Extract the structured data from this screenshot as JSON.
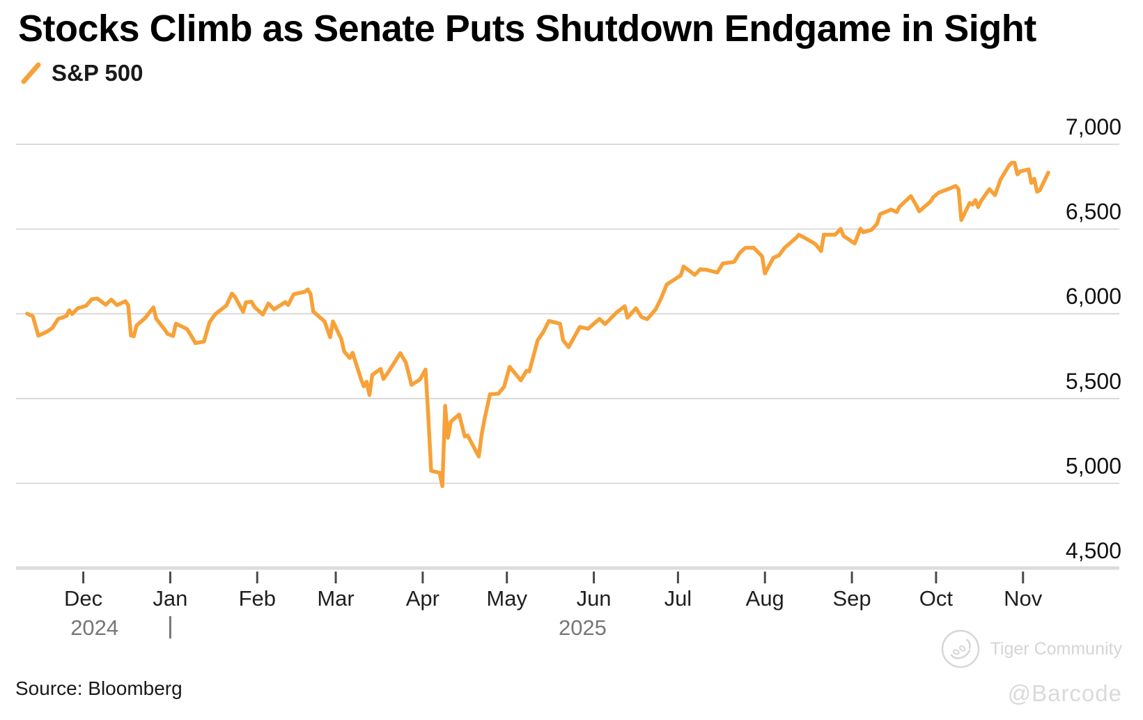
{
  "header": {
    "title": "Stocks Climb as Senate Puts Shutdown Endgame in Sight",
    "legend": {
      "label": "S&P 500",
      "mark": "orange-slash",
      "color": "#F7A138"
    }
  },
  "footer": {
    "source": "Source: Bloomberg",
    "watermark": {
      "logo": "tiger-paw-circle",
      "community": "Tiger Community",
      "handle": "@Barcode"
    }
  },
  "colors": {
    "line": "#F7A138",
    "grid": "#d7d7d7",
    "axis": "#dcdcdc",
    "tick": "#4a4a4a",
    "axis_label": "#111111",
    "year_label": "#767676",
    "watermark": "#d6d6d6"
  },
  "chart_data": {
    "type": "line",
    "title": "Stocks Climb as Senate Puts Shutdown Endgame in Sight",
    "xlabel": "",
    "ylabel": "",
    "grid": true,
    "legend_position": "top-left",
    "x_range": [
      "2024-11-10",
      "2025-11-10"
    ],
    "ylim": [
      4500,
      7000
    ],
    "y_ticks": [
      4500,
      5000,
      5500,
      6000,
      6500,
      7000
    ],
    "x_ticks": [
      {
        "label": "Dec",
        "date": "2024-12-01"
      },
      {
        "label": "Jan",
        "date": "2025-01-01"
      },
      {
        "label": "Feb",
        "date": "2025-02-01"
      },
      {
        "label": "Mar",
        "date": "2025-03-01"
      },
      {
        "label": "Apr",
        "date": "2025-04-01"
      },
      {
        "label": "May",
        "date": "2025-05-01"
      },
      {
        "label": "Jun",
        "date": "2025-06-01"
      },
      {
        "label": "Jul",
        "date": "2025-07-01"
      },
      {
        "label": "Aug",
        "date": "2025-08-01"
      },
      {
        "label": "Sep",
        "date": "2025-09-01"
      },
      {
        "label": "Oct",
        "date": "2025-10-01"
      },
      {
        "label": "Nov",
        "date": "2025-11-01"
      }
    ],
    "year_labels": [
      {
        "label": "2024",
        "center_date": "2024-12-05"
      },
      {
        "label": "2025",
        "center_date": "2025-05-28"
      }
    ],
    "year_divider_date": "2025-01-01",
    "series": [
      {
        "name": "S&P 500",
        "color": "#F7A138",
        "points": [
          [
            "2024-11-11",
            6001
          ],
          [
            "2024-11-13",
            5985
          ],
          [
            "2024-11-15",
            5871
          ],
          [
            "2024-11-18",
            5894
          ],
          [
            "2024-11-20",
            5917
          ],
          [
            "2024-11-22",
            5969
          ],
          [
            "2024-11-25",
            5987
          ],
          [
            "2024-11-26",
            6021
          ],
          [
            "2024-11-27",
            5998
          ],
          [
            "2024-11-29",
            6032
          ],
          [
            "2024-12-02",
            6047
          ],
          [
            "2024-12-04",
            6086
          ],
          [
            "2024-12-06",
            6090
          ],
          [
            "2024-12-09",
            6053
          ],
          [
            "2024-12-11",
            6084
          ],
          [
            "2024-12-13",
            6051
          ],
          [
            "2024-12-16",
            6074
          ],
          [
            "2024-12-17",
            6051
          ],
          [
            "2024-12-18",
            5872
          ],
          [
            "2024-12-19",
            5867
          ],
          [
            "2024-12-20",
            5931
          ],
          [
            "2024-12-23",
            5974
          ],
          [
            "2024-12-26",
            6038
          ],
          [
            "2024-12-27",
            5971
          ],
          [
            "2024-12-30",
            5907
          ],
          [
            "2024-12-31",
            5882
          ],
          [
            "2025-01-02",
            5869
          ],
          [
            "2025-01-03",
            5942
          ],
          [
            "2025-01-07",
            5910
          ],
          [
            "2025-01-10",
            5827
          ],
          [
            "2025-01-13",
            5836
          ],
          [
            "2025-01-15",
            5950
          ],
          [
            "2025-01-17",
            5997
          ],
          [
            "2025-01-21",
            6049
          ],
          [
            "2025-01-23",
            6119
          ],
          [
            "2025-01-24",
            6101
          ],
          [
            "2025-01-27",
            6012
          ],
          [
            "2025-01-28",
            6068
          ],
          [
            "2025-01-30",
            6071
          ],
          [
            "2025-01-31",
            6041
          ],
          [
            "2025-02-03",
            5995
          ],
          [
            "2025-02-05",
            6061
          ],
          [
            "2025-02-07",
            6026
          ],
          [
            "2025-02-11",
            6069
          ],
          [
            "2025-02-12",
            6052
          ],
          [
            "2025-02-14",
            6115
          ],
          [
            "2025-02-18",
            6130
          ],
          [
            "2025-02-19",
            6144
          ],
          [
            "2025-02-20",
            6118
          ],
          [
            "2025-02-21",
            6013
          ],
          [
            "2025-02-25",
            5955
          ],
          [
            "2025-02-27",
            5862
          ],
          [
            "2025-02-28",
            5955
          ],
          [
            "2025-03-03",
            5850
          ],
          [
            "2025-03-04",
            5778
          ],
          [
            "2025-03-06",
            5739
          ],
          [
            "2025-03-07",
            5770
          ],
          [
            "2025-03-10",
            5615
          ],
          [
            "2025-03-11",
            5572
          ],
          [
            "2025-03-12",
            5599
          ],
          [
            "2025-03-13",
            5521
          ],
          [
            "2025-03-14",
            5639
          ],
          [
            "2025-03-17",
            5675
          ],
          [
            "2025-03-18",
            5615
          ],
          [
            "2025-03-20",
            5663
          ],
          [
            "2025-03-24",
            5768
          ],
          [
            "2025-03-26",
            5712
          ],
          [
            "2025-03-28",
            5581
          ],
          [
            "2025-03-31",
            5612
          ],
          [
            "2025-04-02",
            5671
          ],
          [
            "2025-04-03",
            5396
          ],
          [
            "2025-04-04",
            5074
          ],
          [
            "2025-04-07",
            5062
          ],
          [
            "2025-04-08",
            4983
          ],
          [
            "2025-04-09",
            5457
          ],
          [
            "2025-04-10",
            5268
          ],
          [
            "2025-04-11",
            5363
          ],
          [
            "2025-04-14",
            5406
          ],
          [
            "2025-04-16",
            5276
          ],
          [
            "2025-04-17",
            5283
          ],
          [
            "2025-04-21",
            5158
          ],
          [
            "2025-04-22",
            5288
          ],
          [
            "2025-04-23",
            5376
          ],
          [
            "2025-04-25",
            5525
          ],
          [
            "2025-04-28",
            5529
          ],
          [
            "2025-04-30",
            5569
          ],
          [
            "2025-05-02",
            5687
          ],
          [
            "2025-05-06",
            5607
          ],
          [
            "2025-05-08",
            5664
          ],
          [
            "2025-05-09",
            5660
          ],
          [
            "2025-05-12",
            5844
          ],
          [
            "2025-05-14",
            5893
          ],
          [
            "2025-05-16",
            5958
          ],
          [
            "2025-05-20",
            5941
          ],
          [
            "2025-05-21",
            5845
          ],
          [
            "2025-05-23",
            5803
          ],
          [
            "2025-05-27",
            5922
          ],
          [
            "2025-05-30",
            5912
          ],
          [
            "2025-06-03",
            5970
          ],
          [
            "2025-06-05",
            5939
          ],
          [
            "2025-06-09",
            6006
          ],
          [
            "2025-06-12",
            6045
          ],
          [
            "2025-06-13",
            5977
          ],
          [
            "2025-06-16",
            6033
          ],
          [
            "2025-06-18",
            5981
          ],
          [
            "2025-06-20",
            5968
          ],
          [
            "2025-06-23",
            6025
          ],
          [
            "2025-06-25",
            6092
          ],
          [
            "2025-06-27",
            6173
          ],
          [
            "2025-06-30",
            6205
          ],
          [
            "2025-07-02",
            6227
          ],
          [
            "2025-07-03",
            6279
          ],
          [
            "2025-07-07",
            6230
          ],
          [
            "2025-07-09",
            6263
          ],
          [
            "2025-07-11",
            6260
          ],
          [
            "2025-07-15",
            6244
          ],
          [
            "2025-07-17",
            6297
          ],
          [
            "2025-07-21",
            6306
          ],
          [
            "2025-07-23",
            6359
          ],
          [
            "2025-07-25",
            6389
          ],
          [
            "2025-07-28",
            6390
          ],
          [
            "2025-07-31",
            6339
          ],
          [
            "2025-08-01",
            6238
          ],
          [
            "2025-08-04",
            6330
          ],
          [
            "2025-08-06",
            6345
          ],
          [
            "2025-08-08",
            6389
          ],
          [
            "2025-08-12",
            6446
          ],
          [
            "2025-08-13",
            6466
          ],
          [
            "2025-08-15",
            6450
          ],
          [
            "2025-08-19",
            6411
          ],
          [
            "2025-08-21",
            6370
          ],
          [
            "2025-08-22",
            6467
          ],
          [
            "2025-08-26",
            6466
          ],
          [
            "2025-08-28",
            6501
          ],
          [
            "2025-08-29",
            6460
          ],
          [
            "2025-09-02",
            6415
          ],
          [
            "2025-09-04",
            6502
          ],
          [
            "2025-09-05",
            6481
          ],
          [
            "2025-09-08",
            6495
          ],
          [
            "2025-09-10",
            6532
          ],
          [
            "2025-09-11",
            6587
          ],
          [
            "2025-09-15",
            6615
          ],
          [
            "2025-09-17",
            6600
          ],
          [
            "2025-09-18",
            6632
          ],
          [
            "2025-09-22",
            6694
          ],
          [
            "2025-09-24",
            6638
          ],
          [
            "2025-09-25",
            6605
          ],
          [
            "2025-09-29",
            6661
          ],
          [
            "2025-09-30",
            6688
          ],
          [
            "2025-10-02",
            6715
          ],
          [
            "2025-10-06",
            6740
          ],
          [
            "2025-10-08",
            6754
          ],
          [
            "2025-10-09",
            6735
          ],
          [
            "2025-10-10",
            6553
          ],
          [
            "2025-10-13",
            6654
          ],
          [
            "2025-10-14",
            6644
          ],
          [
            "2025-10-15",
            6671
          ],
          [
            "2025-10-16",
            6629
          ],
          [
            "2025-10-17",
            6664
          ],
          [
            "2025-10-20",
            6735
          ],
          [
            "2025-10-22",
            6700
          ],
          [
            "2025-10-24",
            6792
          ],
          [
            "2025-10-27",
            6875
          ],
          [
            "2025-10-28",
            6891
          ],
          [
            "2025-10-29",
            6891
          ],
          [
            "2025-10-30",
            6822
          ],
          [
            "2025-10-31",
            6840
          ],
          [
            "2025-11-03",
            6852
          ],
          [
            "2025-11-04",
            6772
          ],
          [
            "2025-11-05",
            6796
          ],
          [
            "2025-11-06",
            6720
          ],
          [
            "2025-11-07",
            6729
          ],
          [
            "2025-11-10",
            6833
          ]
        ]
      }
    ]
  }
}
